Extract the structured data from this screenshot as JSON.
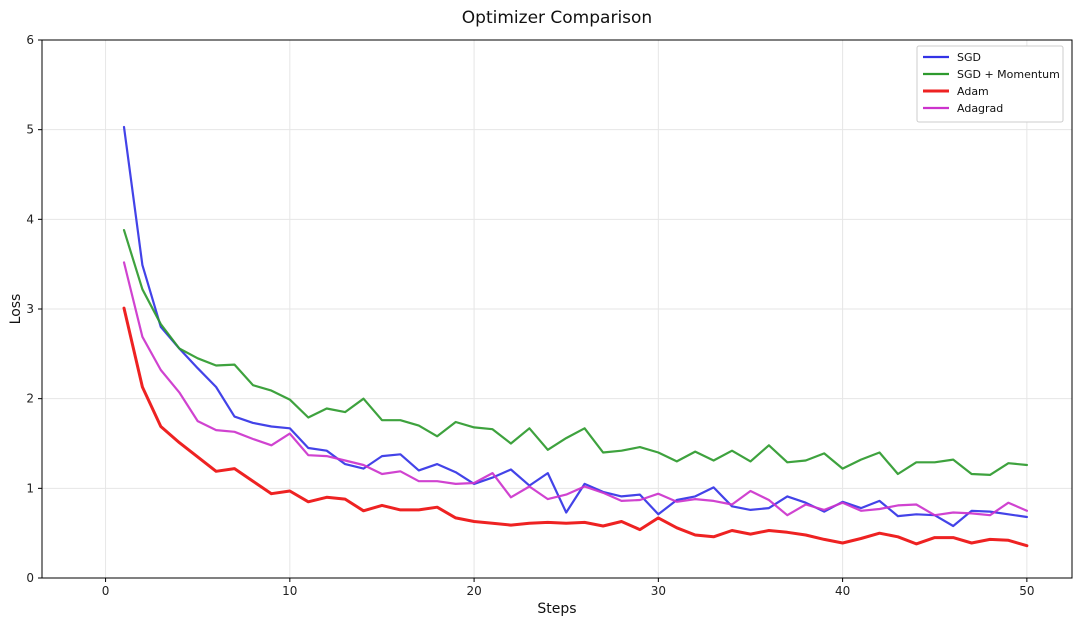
{
  "chart_data": {
    "type": "line",
    "title": "Optimizer Comparison",
    "xlabel": "Steps",
    "ylabel": "Loss",
    "xlim": [
      -3.45,
      52.45
    ],
    "ylim": [
      0,
      6
    ],
    "xticks": [
      0,
      10,
      20,
      30,
      40,
      50
    ],
    "yticks": [
      0,
      1,
      2,
      3,
      4,
      5,
      6
    ],
    "grid": true,
    "legend_position": "top-right",
    "x": [
      1,
      2,
      3,
      4,
      5,
      6,
      7,
      8,
      9,
      10,
      11,
      12,
      13,
      14,
      15,
      16,
      17,
      18,
      19,
      20,
      21,
      22,
      23,
      24,
      25,
      26,
      27,
      28,
      29,
      30,
      31,
      32,
      33,
      34,
      35,
      36,
      37,
      38,
      39,
      40,
      41,
      42,
      43,
      44,
      45,
      46,
      47,
      48,
      49,
      50
    ],
    "series": [
      {
        "name": "SGD",
        "color": "#3333e6",
        "values": [
          5.03,
          3.49,
          2.8,
          2.56,
          2.34,
          2.13,
          1.8,
          1.73,
          1.69,
          1.67,
          1.45,
          1.42,
          1.27,
          1.22,
          1.36,
          1.38,
          1.2,
          1.27,
          1.18,
          1.05,
          1.12,
          1.21,
          1.03,
          1.17,
          0.73,
          1.05,
          0.96,
          0.91,
          0.93,
          0.71,
          0.87,
          0.91,
          1.01,
          0.8,
          0.76,
          0.78,
          0.91,
          0.84,
          0.74,
          0.85,
          0.78,
          0.86,
          0.69,
          0.71,
          0.7,
          0.58,
          0.75,
          0.74,
          0.71,
          0.68
        ]
      },
      {
        "name": "SGD + Momentum",
        "color": "#2e9a2e",
        "values": [
          3.88,
          3.22,
          2.83,
          2.56,
          2.45,
          2.37,
          2.38,
          2.15,
          2.09,
          1.99,
          1.79,
          1.89,
          1.85,
          2.0,
          1.76,
          1.76,
          1.7,
          1.58,
          1.74,
          1.68,
          1.66,
          1.5,
          1.67,
          1.43,
          1.56,
          1.67,
          1.4,
          1.42,
          1.46,
          1.4,
          1.3,
          1.41,
          1.31,
          1.42,
          1.3,
          1.48,
          1.29,
          1.31,
          1.39,
          1.22,
          1.32,
          1.4,
          1.16,
          1.29,
          1.29,
          1.32,
          1.16,
          1.15,
          1.28,
          1.26
        ]
      },
      {
        "name": "Adam",
        "color": "#ee2222",
        "values": [
          3.01,
          2.13,
          1.69,
          1.51,
          1.35,
          1.19,
          1.22,
          1.08,
          0.94,
          0.97,
          0.85,
          0.9,
          0.88,
          0.75,
          0.81,
          0.76,
          0.76,
          0.79,
          0.67,
          0.63,
          0.61,
          0.59,
          0.61,
          0.62,
          0.61,
          0.62,
          0.58,
          0.63,
          0.54,
          0.67,
          0.56,
          0.48,
          0.46,
          0.53,
          0.49,
          0.53,
          0.51,
          0.48,
          0.43,
          0.39,
          0.44,
          0.5,
          0.46,
          0.38,
          0.45,
          0.45,
          0.39,
          0.43,
          0.42,
          0.36
        ]
      },
      {
        "name": "Adagrad",
        "color": "#cc33cc",
        "values": [
          3.52,
          2.69,
          2.32,
          2.07,
          1.75,
          1.65,
          1.63,
          1.55,
          1.48,
          1.61,
          1.37,
          1.36,
          1.31,
          1.26,
          1.16,
          1.19,
          1.08,
          1.08,
          1.05,
          1.06,
          1.17,
          0.9,
          1.02,
          0.88,
          0.93,
          1.02,
          0.95,
          0.86,
          0.87,
          0.94,
          0.85,
          0.88,
          0.86,
          0.82,
          0.97,
          0.87,
          0.7,
          0.82,
          0.76,
          0.84,
          0.75,
          0.77,
          0.81,
          0.82,
          0.7,
          0.73,
          0.72,
          0.7,
          0.84,
          0.75
        ]
      }
    ]
  }
}
